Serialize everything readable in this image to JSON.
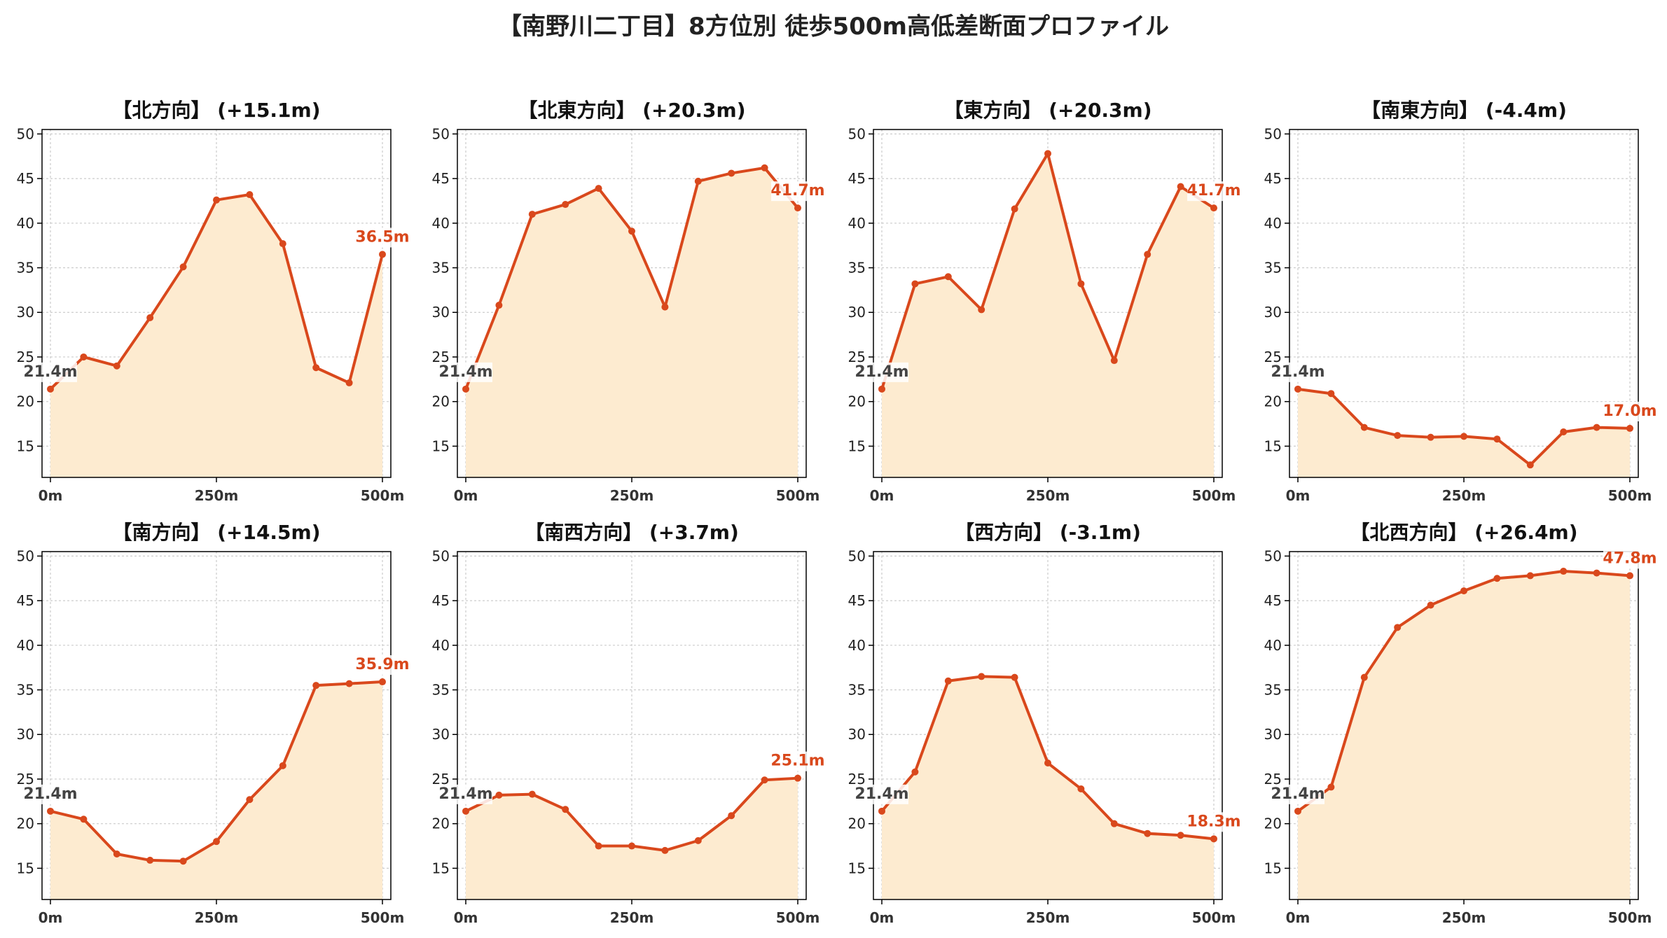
{
  "title": "【南野川二丁目】8方位別 徒歩500m高低差断面プロファイル",
  "colors": {
    "line": "#d9481c",
    "fill": "#fdebd0",
    "start_label": "#444444",
    "grid": "#cccccc",
    "axis": "#000000"
  },
  "chart_data": [
    {
      "type": "area",
      "title": "【北方向】 (+15.1m)",
      "x": [
        0,
        50,
        100,
        150,
        200,
        250,
        300,
        350,
        400,
        450,
        500
      ],
      "y": [
        21.4,
        25.0,
        24.0,
        29.4,
        35.1,
        42.6,
        43.2,
        37.7,
        23.8,
        22.1,
        36.5
      ],
      "xticks": [
        "0m",
        "250m",
        "500m"
      ],
      "yticks": [
        15,
        20,
        25,
        30,
        35,
        40,
        45,
        50
      ],
      "ylim": [
        11.5,
        50.5
      ],
      "start_label": "21.4m",
      "end_label": "36.5m",
      "grid": true
    },
    {
      "type": "area",
      "title": "【北東方向】 (+20.3m)",
      "x": [
        0,
        50,
        100,
        150,
        200,
        250,
        300,
        350,
        400,
        450,
        500
      ],
      "y": [
        21.4,
        30.8,
        41.0,
        42.1,
        43.9,
        39.1,
        30.6,
        44.7,
        45.6,
        46.2,
        41.7
      ],
      "xticks": [
        "0m",
        "250m",
        "500m"
      ],
      "yticks": [
        15,
        20,
        25,
        30,
        35,
        40,
        45,
        50
      ],
      "ylim": [
        11.5,
        50.5
      ],
      "start_label": "21.4m",
      "end_label": "41.7m",
      "grid": true
    },
    {
      "type": "area",
      "title": "【東方向】 (+20.3m)",
      "x": [
        0,
        50,
        100,
        150,
        200,
        250,
        300,
        350,
        400,
        450,
        500
      ],
      "y": [
        21.4,
        33.2,
        34.0,
        30.3,
        41.6,
        47.8,
        33.2,
        24.6,
        36.5,
        44.1,
        41.7
      ],
      "xticks": [
        "0m",
        "250m",
        "500m"
      ],
      "yticks": [
        15,
        20,
        25,
        30,
        35,
        40,
        45,
        50
      ],
      "ylim": [
        11.5,
        50.5
      ],
      "start_label": "21.4m",
      "end_label": "41.7m",
      "grid": true
    },
    {
      "type": "area",
      "title": "【南東方向】 (-4.4m)",
      "x": [
        0,
        50,
        100,
        150,
        200,
        250,
        300,
        350,
        400,
        450,
        500
      ],
      "y": [
        21.4,
        20.9,
        17.1,
        16.2,
        16.0,
        16.1,
        15.8,
        12.9,
        16.6,
        17.1,
        17.0
      ],
      "xticks": [
        "0m",
        "250m",
        "500m"
      ],
      "yticks": [
        15,
        20,
        25,
        30,
        35,
        40,
        45,
        50
      ],
      "ylim": [
        11.5,
        50.5
      ],
      "start_label": "21.4m",
      "end_label": "17.0m",
      "grid": true
    },
    {
      "type": "area",
      "title": "【南方向】 (+14.5m)",
      "x": [
        0,
        50,
        100,
        150,
        200,
        250,
        300,
        350,
        400,
        450,
        500
      ],
      "y": [
        21.4,
        20.5,
        16.6,
        15.9,
        15.8,
        18.0,
        22.7,
        26.5,
        35.5,
        35.7,
        35.9
      ],
      "xticks": [
        "0m",
        "250m",
        "500m"
      ],
      "yticks": [
        15,
        20,
        25,
        30,
        35,
        40,
        45,
        50
      ],
      "ylim": [
        11.5,
        50.5
      ],
      "start_label": "21.4m",
      "end_label": "35.9m",
      "grid": true
    },
    {
      "type": "area",
      "title": "【南西方向】 (+3.7m)",
      "x": [
        0,
        50,
        100,
        150,
        200,
        250,
        300,
        350,
        400,
        450,
        500
      ],
      "y": [
        21.4,
        23.2,
        23.3,
        21.6,
        17.5,
        17.5,
        17.0,
        18.1,
        20.9,
        24.9,
        25.1
      ],
      "xticks": [
        "0m",
        "250m",
        "500m"
      ],
      "yticks": [
        15,
        20,
        25,
        30,
        35,
        40,
        45,
        50
      ],
      "ylim": [
        11.5,
        50.5
      ],
      "start_label": "21.4m",
      "end_label": "25.1m",
      "grid": true
    },
    {
      "type": "area",
      "title": "【西方向】 (-3.1m)",
      "x": [
        0,
        50,
        100,
        150,
        200,
        250,
        300,
        350,
        400,
        450,
        500
      ],
      "y": [
        21.4,
        25.8,
        36.0,
        36.5,
        36.4,
        26.8,
        23.9,
        20.0,
        18.9,
        18.7,
        18.3
      ],
      "xticks": [
        "0m",
        "250m",
        "500m"
      ],
      "yticks": [
        15,
        20,
        25,
        30,
        35,
        40,
        45,
        50
      ],
      "ylim": [
        11.5,
        50.5
      ],
      "start_label": "21.4m",
      "end_label": "18.3m",
      "grid": true
    },
    {
      "type": "area",
      "title": "【北西方向】 (+26.4m)",
      "x": [
        0,
        50,
        100,
        150,
        200,
        250,
        300,
        350,
        400,
        450,
        500
      ],
      "y": [
        21.4,
        24.1,
        36.4,
        42.0,
        44.5,
        46.1,
        47.5,
        47.8,
        48.3,
        48.1,
        47.8
      ],
      "xticks": [
        "0m",
        "250m",
        "500m"
      ],
      "yticks": [
        15,
        20,
        25,
        30,
        35,
        40,
        45,
        50
      ],
      "ylim": [
        11.5,
        50.5
      ],
      "start_label": "21.4m",
      "end_label": "47.8m",
      "grid": true
    }
  ]
}
